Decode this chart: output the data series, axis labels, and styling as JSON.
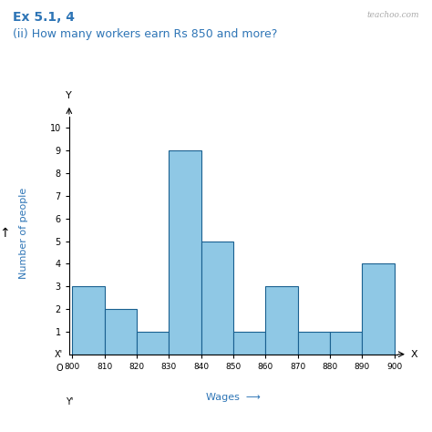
{
  "title": "Ex 5.1, 4",
  "subtitle": "(ii) How many workers earn Rs 850 and more?",
  "watermark": "teachoo.com",
  "bin_edges": [
    800,
    810,
    820,
    830,
    840,
    850,
    860,
    870,
    880,
    890,
    900
  ],
  "frequencies": [
    3,
    2,
    1,
    9,
    5,
    1,
    3,
    1,
    1,
    4
  ],
  "bar_color": "#8fc8e5",
  "bar_edge_color": "#1a6090",
  "xlabel": "Wages",
  "ylabel": "Number of people",
  "ylabel_color": "#2e75b6",
  "xlabel_color": "#2e75b6",
  "ylim": [
    0,
    10.5
  ],
  "yticks": [
    1,
    2,
    3,
    4,
    5,
    6,
    7,
    8,
    9,
    10
  ],
  "xtick_labels": [
    "800",
    "810",
    "820",
    "830",
    "840",
    "850",
    "860",
    "870",
    "880",
    "890",
    "900"
  ],
  "title_color": "#2e75b6",
  "subtitle_color": "#2e75b6",
  "background_color": "#ffffff",
  "axis_label_fontsize": 8,
  "tick_fontsize": 7,
  "title_fontsize": 10,
  "subtitle_fontsize": 9
}
